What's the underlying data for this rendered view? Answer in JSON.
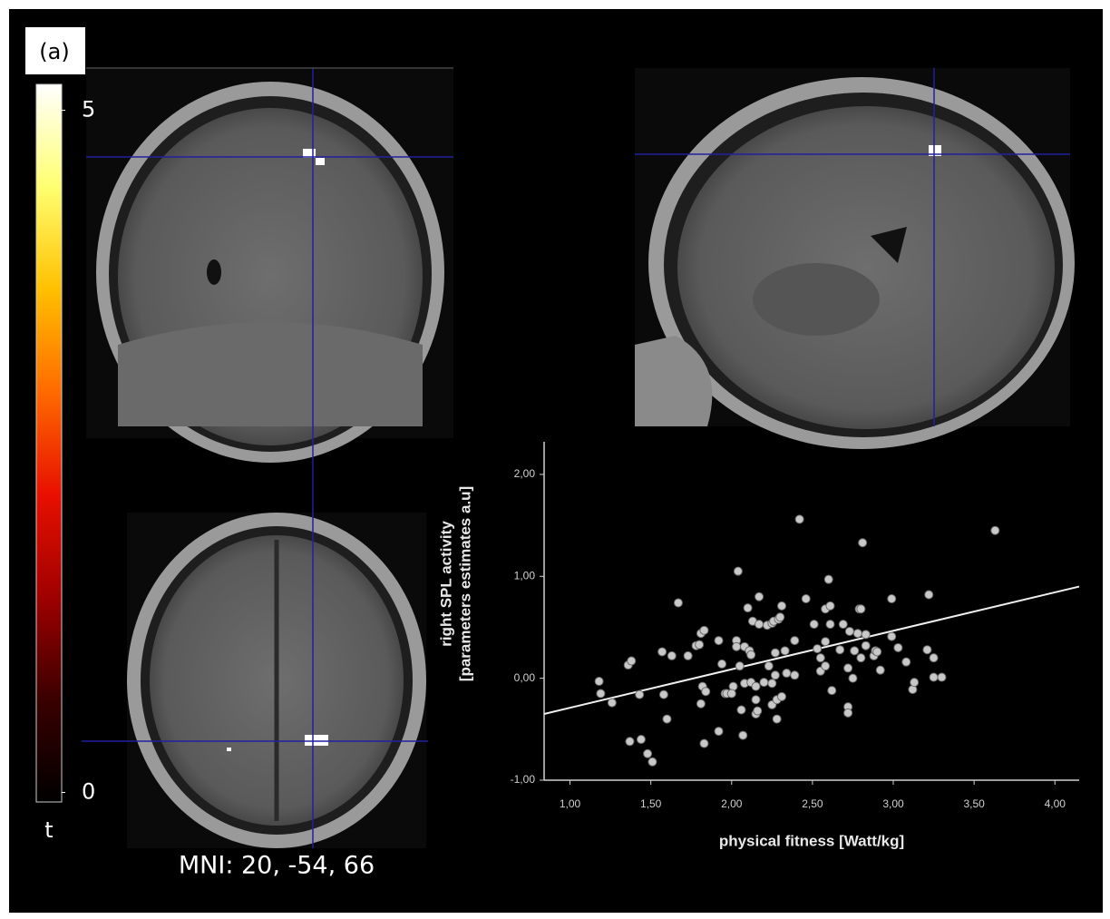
{
  "panel_label": "(a)",
  "coordinates": "MNI: 20, -54, 66",
  "chart_data": [
    {
      "type": "colorbar",
      "label": "t",
      "ylim": [
        -0.07,
        5.19
      ],
      "yticks": [
        0,
        5
      ],
      "colors": [
        "#000000",
        "#3a0000",
        "#a00000",
        "#e81000",
        "#ff6a00",
        "#ffc000",
        "#ffff70",
        "#ffffff"
      ]
    },
    {
      "type": "scatter",
      "xlabel": "physical fitness [Watt/kg]",
      "ylabel": [
        "right SPL activity",
        "[parameters estimates a.u]"
      ],
      "xlim": [
        0.84,
        4.15
      ],
      "ylim": [
        -1,
        2.32
      ],
      "xticks": [
        {
          "value": 1,
          "label": "1,00"
        },
        {
          "value": 1.5,
          "label": "1,50"
        },
        {
          "value": 2,
          "label": "2,00"
        },
        {
          "value": 2.5,
          "label": "2,50"
        },
        {
          "value": 3,
          "label": "3,00"
        },
        {
          "value": 3.5,
          "label": "3,50"
        },
        {
          "value": 4,
          "label": "4,00"
        }
      ],
      "yticks": [
        {
          "value": -1,
          "label": "-1,00"
        },
        {
          "value": 0,
          "label": "0,00"
        },
        {
          "value": 1,
          "label": "1,00"
        },
        {
          "value": 2,
          "label": "2,00"
        }
      ],
      "color": "#c8c8c8",
      "x": [
        1.18,
        1.19,
        1.26,
        1.36,
        1.38,
        1.37,
        1.43,
        1.44,
        1.48,
        1.51,
        1.58,
        1.6,
        1.57,
        1.63,
        1.67,
        1.73,
        1.78,
        1.8,
        1.81,
        1.82,
        1.81,
        1.83,
        1.83,
        1.84,
        1.92,
        1.92,
        1.94,
        1.96,
        1.97,
        2.01,
        2.0,
        2.03,
        2.04,
        2.03,
        2.05,
        2.06,
        2.07,
        2.08,
        2.08,
        2.1,
        2.11,
        2.12,
        2.12,
        2.13,
        2.15,
        2.15,
        2.15,
        2.16,
        2.17,
        2.17,
        2.2,
        2.22,
        2.23,
        2.25,
        2.25,
        2.26,
        2.27,
        2.27,
        2.28,
        2.28,
        2.29,
        2.3,
        2.31,
        2.31,
        2.33,
        2.34,
        2.39,
        2.39,
        2.42,
        2.46,
        2.51,
        2.53,
        2.55,
        2.55,
        2.58,
        2.58,
        2.58,
        2.6,
        2.61,
        2.61,
        2.62,
        2.67,
        2.69,
        2.72,
        2.73,
        2.75,
        2.76,
        2.78,
        2.79,
        2.8,
        2.81,
        2.83,
        2.83,
        2.88,
        2.89,
        2.92,
        2.99,
        2.99,
        3.03,
        3.08,
        3.12,
        3.13,
        3.21,
        3.22,
        3.25,
        3.25,
        3.3,
        3.63,
        2.72,
        2.72,
        2.8,
        2.9,
        2.25
      ],
      "y": [
        -0.03,
        -0.15,
        -0.24,
        0.13,
        0.17,
        -0.62,
        -0.16,
        -0.6,
        -0.74,
        -0.82,
        -0.16,
        -0.4,
        0.26,
        0.22,
        0.74,
        0.22,
        0.32,
        0.33,
        -0.25,
        -0.08,
        0.44,
        -0.64,
        0.47,
        -0.13,
        0.37,
        -0.52,
        0.14,
        -0.15,
        -0.15,
        -0.08,
        -0.15,
        0.37,
        1.05,
        0.31,
        0.12,
        -0.31,
        -0.56,
        0.31,
        -0.05,
        0.69,
        0.27,
        0.23,
        -0.04,
        0.56,
        -0.21,
        -0.35,
        -0.08,
        -0.32,
        0.8,
        0.53,
        -0.04,
        0.52,
        0.12,
        0.54,
        -0.26,
        0.56,
        0.03,
        0.25,
        -0.4,
        -0.21,
        0.58,
        0.6,
        -0.18,
        0.71,
        0.27,
        0.05,
        0.03,
        0.37,
        1.56,
        0.78,
        0.53,
        0.29,
        0.2,
        0.07,
        0.12,
        0.36,
        0.68,
        0.97,
        0.71,
        0.53,
        -0.12,
        0.28,
        0.53,
        0.1,
        0.46,
        0.0,
        0.27,
        0.44,
        0.68,
        0.68,
        1.33,
        0.43,
        0.32,
        0.22,
        0.27,
        0.08,
        0.78,
        0.41,
        0.3,
        0.16,
        -0.11,
        -0.04,
        0.28,
        0.82,
        0.2,
        0.01,
        0.01,
        1.45,
        -0.28,
        -0.34,
        0.2,
        0.26,
        -0.05
      ],
      "fit": {
        "x": [
          0.84,
          4.15
        ],
        "y": [
          -0.35,
          0.9
        ],
        "color": "#f0f0f0"
      }
    }
  ]
}
